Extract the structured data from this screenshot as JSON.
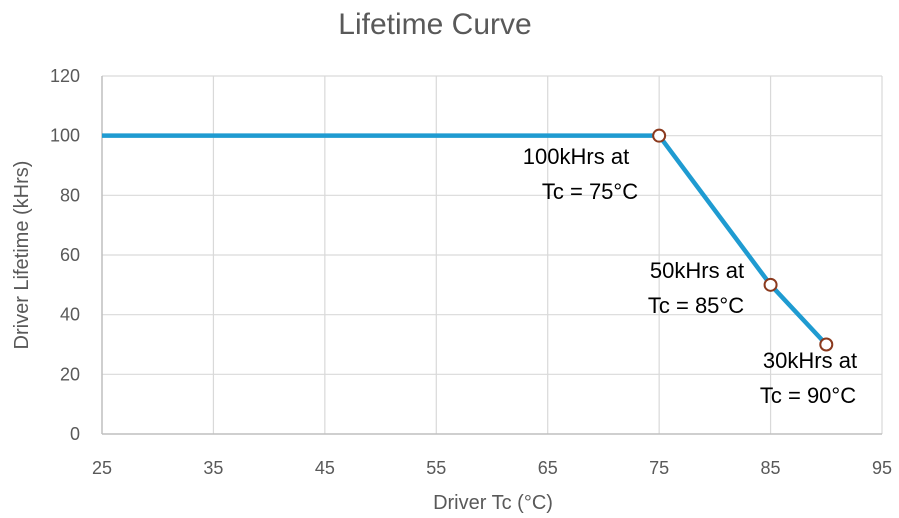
{
  "chart_data": {
    "type": "line",
    "title": "Lifetime Curve",
    "xlabel": "Driver Tc (°C)",
    "ylabel": "Driver Lifetime (kHrs)",
    "xlim": [
      25,
      95
    ],
    "ylim": [
      0,
      120
    ],
    "xticks": [
      "25",
      "35",
      "45",
      "55",
      "65",
      "75",
      "85",
      "95"
    ],
    "yticks": [
      "0",
      "20",
      "40",
      "60",
      "80",
      "100",
      "120"
    ],
    "grid": true,
    "series": [
      {
        "x": [
          25,
          75,
          85,
          90
        ],
        "y": [
          100,
          100,
          50,
          30
        ],
        "color": "#1f9bd1"
      }
    ],
    "markers": [
      {
        "x": 75,
        "y": 100,
        "color": "#8b3a1e"
      },
      {
        "x": 85,
        "y": 50,
        "color": "#8b3a1e"
      },
      {
        "x": 90,
        "y": 30,
        "color": "#8b3a1e"
      }
    ],
    "annotations": [
      {
        "lines": [
          "100kHrs at",
          "Tc = 75°C"
        ]
      },
      {
        "lines": [
          "50kHrs at",
          "Tc = 85°C"
        ]
      },
      {
        "lines": [
          "30kHrs at",
          "Tc = 90°C"
        ]
      }
    ]
  }
}
